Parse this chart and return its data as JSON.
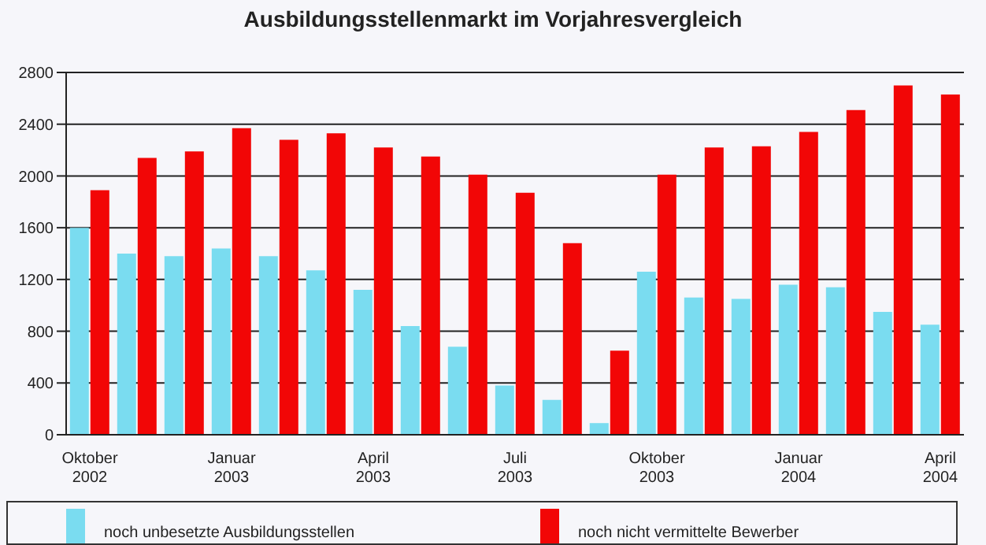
{
  "chart_data": {
    "type": "bar",
    "title": "Ausbildungsstellenmarkt im Vorjahresvergleich",
    "categories": [
      "Oktober 2002",
      null,
      null,
      "Januar 2003",
      null,
      null,
      "April 2003",
      null,
      null,
      "Juli 2003",
      null,
      null,
      "Oktober 2003",
      null,
      null,
      "Januar 2004",
      null,
      null,
      "April 2004"
    ],
    "series": [
      {
        "name": "noch unbesetzte Ausbildungsstellen",
        "color": "#7adcf0",
        "values": [
          1600,
          1400,
          1380,
          1440,
          1380,
          1270,
          1120,
          840,
          680,
          380,
          270,
          90,
          1260,
          1060,
          1050,
          1160,
          1140,
          950,
          850
        ]
      },
      {
        "name": "noch nicht vermittelte Bewerber",
        "color": "#f20606",
        "values": [
          1890,
          2140,
          2190,
          2370,
          2280,
          2330,
          2220,
          2150,
          2010,
          1870,
          1480,
          650,
          2010,
          2220,
          2230,
          2340,
          2510,
          2700,
          2630
        ]
      }
    ],
    "ylim": [
      0,
      2800
    ],
    "yticks": [
      0,
      400,
      800,
      1200,
      1600,
      2000,
      2400,
      2800
    ],
    "grid": "y",
    "legend": "bottom"
  }
}
